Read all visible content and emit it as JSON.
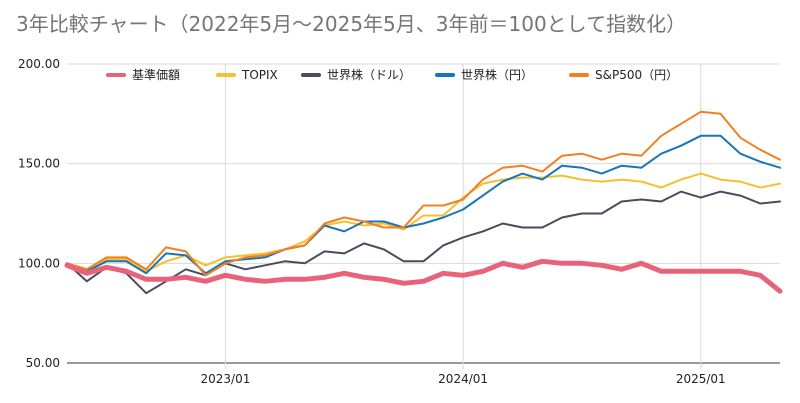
{
  "chart_data": {
    "type": "line",
    "title": "3年比較チャート（2022年5月～2025年5月、3年前＝100として指数化）",
    "xlabel": "",
    "ylabel": "",
    "ylim": [
      50,
      200
    ],
    "yticks": [
      "50.00",
      "100.00",
      "150.00",
      "200.00"
    ],
    "xticks": [
      "2023/01",
      "2024/01",
      "2025/01"
    ],
    "grid": true,
    "legend": "top",
    "x": [
      "2022/05",
      "2022/06",
      "2022/07",
      "2022/08",
      "2022/09",
      "2022/10",
      "2022/11",
      "2022/12",
      "2023/01",
      "2023/02",
      "2023/03",
      "2023/04",
      "2023/05",
      "2023/06",
      "2023/07",
      "2023/08",
      "2023/09",
      "2023/10",
      "2023/11",
      "2023/12",
      "2024/01",
      "2024/02",
      "2024/03",
      "2024/04",
      "2024/05",
      "2024/06",
      "2024/07",
      "2024/08",
      "2024/09",
      "2024/10",
      "2024/11",
      "2024/12",
      "2025/01",
      "2025/02",
      "2025/03",
      "2025/04",
      "2025/05"
    ],
    "series": [
      {
        "name": "基準価額",
        "color": "#e8637a",
        "values": [
          99,
          95,
          98,
          96,
          92,
          92,
          93,
          91,
          94,
          92,
          91,
          92,
          92,
          93,
          95,
          93,
          92,
          90,
          91,
          95,
          94,
          96,
          100,
          98,
          101,
          100,
          100,
          99,
          97,
          100,
          96,
          96,
          96,
          96,
          96,
          94,
          86
        ]
      },
      {
        "name": "TOPIX",
        "color": "#f4c02e",
        "values": [
          100,
          97,
          102,
          102,
          96,
          101,
          104,
          99,
          103,
          104,
          105,
          107,
          111,
          119,
          121,
          119,
          120,
          117,
          124,
          124,
          133,
          140,
          142,
          143,
          143,
          144,
          142,
          141,
          142,
          141,
          138,
          142,
          145,
          142,
          141,
          138,
          140
        ]
      },
      {
        "name": "世界株（ドル）",
        "color": "#4b4a5e",
        "values": [
          100,
          91,
          98,
          95,
          85,
          91,
          97,
          94,
          100,
          97,
          99,
          101,
          100,
          106,
          105,
          110,
          107,
          101,
          101,
          109,
          113,
          116,
          120,
          118,
          118,
          123,
          125,
          125,
          131,
          132,
          131,
          136,
          133,
          136,
          134,
          130,
          131
        ]
      },
      {
        "name": "世界株（円）",
        "color": "#1a75b7",
        "values": [
          100,
          96,
          101,
          101,
          95,
          105,
          104,
          95,
          101,
          102,
          103,
          107,
          109,
          119,
          116,
          121,
          121,
          118,
          120,
          123,
          127,
          134,
          141,
          145,
          142,
          149,
          148,
          145,
          149,
          148,
          155,
          159,
          164,
          164,
          155,
          151,
          148
        ]
      },
      {
        "name": "S&P500（円）",
        "color": "#f28021",
        "values": [
          100,
          97,
          103,
          103,
          97,
          108,
          106,
          94,
          100,
          103,
          104,
          107,
          109,
          120,
          123,
          121,
          118,
          118,
          129,
          129,
          132,
          142,
          148,
          149,
          146,
          154,
          155,
          152,
          155,
          154,
          164,
          170,
          176,
          175,
          163,
          157,
          152
        ]
      }
    ]
  }
}
